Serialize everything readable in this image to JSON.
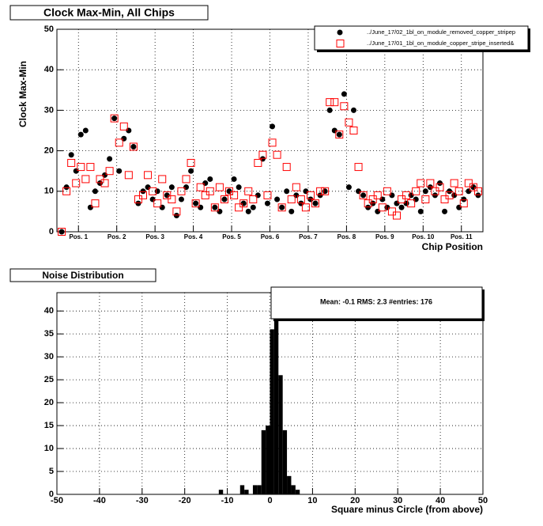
{
  "chart_data": [
    {
      "type": "scatter",
      "title": "Clock Max-Min, All Chips",
      "y_label": "Clock Max-Min",
      "x_label": "Chip Position",
      "legend": "top-right",
      "grid": true,
      "xlim": [
        -1,
        88
      ],
      "ylim": [
        0,
        50
      ],
      "xticks": [
        {
          "value": 3.5,
          "label": "Pos. 1"
        },
        {
          "value": 11.5,
          "label": "Pos. 2"
        },
        {
          "value": 19.5,
          "label": "Pos. 3"
        },
        {
          "value": 27.5,
          "label": "Pos. 4"
        },
        {
          "value": 35.5,
          "label": "Pos. 5"
        },
        {
          "value": 43.5,
          "label": "Pos. 6"
        },
        {
          "value": 51.5,
          "label": "Pos. 7"
        },
        {
          "value": 59.5,
          "label": "Pos. 8"
        },
        {
          "value": 67.5,
          "label": "Pos. 9"
        },
        {
          "value": 75.5,
          "label": "Pos. 10"
        },
        {
          "value": 83.5,
          "label": "Pos. 11"
        }
      ],
      "yticks": [
        0,
        10,
        20,
        30,
        40,
        50
      ],
      "x": [
        0,
        1,
        2,
        3,
        4,
        5,
        6,
        7,
        8,
        9,
        10,
        11,
        12,
        13,
        14,
        15,
        16,
        17,
        18,
        19,
        20,
        21,
        22,
        23,
        24,
        25,
        26,
        27,
        28,
        29,
        30,
        31,
        32,
        33,
        34,
        35,
        36,
        37,
        38,
        39,
        40,
        41,
        42,
        43,
        44,
        45,
        46,
        47,
        48,
        49,
        50,
        51,
        52,
        53,
        54,
        55,
        56,
        57,
        58,
        59,
        60,
        61,
        62,
        63,
        64,
        65,
        66,
        67,
        68,
        69,
        70,
        71,
        72,
        73,
        74,
        75,
        76,
        77,
        78,
        79,
        80,
        81,
        82,
        83,
        84,
        85,
        86,
        87
      ],
      "series": [
        {
          "name": "../June_17/02_1bl_on_module_removed_copper_stripep",
          "color": "#000000",
          "marker": "circle",
          "values": [
            0,
            11,
            19,
            15,
            24,
            25,
            6,
            10,
            12,
            14,
            18,
            28,
            15,
            23,
            25,
            21,
            7,
            10,
            11,
            8,
            10,
            6,
            9,
            11,
            4,
            8,
            11,
            15,
            7,
            6,
            12,
            13,
            6,
            5,
            8,
            10,
            13,
            11,
            7,
            5,
            6,
            9,
            18,
            7,
            26,
            8,
            6,
            10,
            5,
            9,
            7,
            10,
            8,
            7,
            9,
            10,
            30,
            25,
            24,
            34,
            11,
            30,
            10,
            9,
            6,
            7,
            5,
            8,
            6,
            9,
            7,
            6,
            7,
            9,
            8,
            5,
            10,
            11,
            9,
            12,
            5,
            10,
            9,
            6,
            8,
            10,
            11,
            9
          ]
        },
        {
          "name": "../June_17/01_1bl_on_module_copper_stripe_inserted&",
          "color": "#ff0000",
          "marker": "square",
          "values": [
            0,
            10,
            17,
            12,
            16,
            13,
            16,
            7,
            13,
            12,
            15,
            28,
            22,
            26,
            14,
            21,
            8,
            9,
            14,
            10,
            7,
            13,
            9,
            8,
            5,
            10,
            13,
            17,
            7,
            11,
            9,
            10,
            6,
            11,
            8,
            10,
            9,
            6,
            7,
            10,
            8,
            17,
            19,
            9,
            22,
            19,
            6,
            16,
            8,
            11,
            8,
            6,
            9,
            7,
            10,
            10,
            32,
            32,
            24,
            31,
            27,
            25,
            16,
            9,
            7,
            8,
            9,
            6,
            10,
            5,
            4,
            8,
            9,
            7,
            10,
            12,
            8,
            12,
            10,
            11,
            8,
            9,
            12,
            10,
            7,
            12,
            11,
            10
          ]
        }
      ]
    },
    {
      "type": "histogram",
      "title": "Noise Distribution",
      "x_label": "Square minus Circle (from above)",
      "annotation": "Mean:  -0.1 RMS:   2.3 #entries: 176",
      "grid": true,
      "color": "#000000",
      "xlim": [
        -50,
        50
      ],
      "ylim": [
        0,
        44
      ],
      "xticks": [
        -50,
        -40,
        -30,
        -20,
        -10,
        0,
        10,
        20,
        30,
        40,
        50
      ],
      "yticks": [
        0,
        5,
        10,
        15,
        20,
        25,
        30,
        35,
        40
      ],
      "bins": [
        -12,
        -11,
        -10,
        -9,
        -8,
        -7,
        -6,
        -5,
        -4,
        -3,
        -2,
        -1,
        0,
        1,
        2,
        3,
        4,
        5,
        6,
        7
      ],
      "counts": [
        1,
        0,
        0,
        0,
        0,
        2,
        1,
        0,
        2,
        2,
        14,
        15,
        36,
        43,
        26,
        14,
        4,
        2,
        1
      ]
    }
  ]
}
